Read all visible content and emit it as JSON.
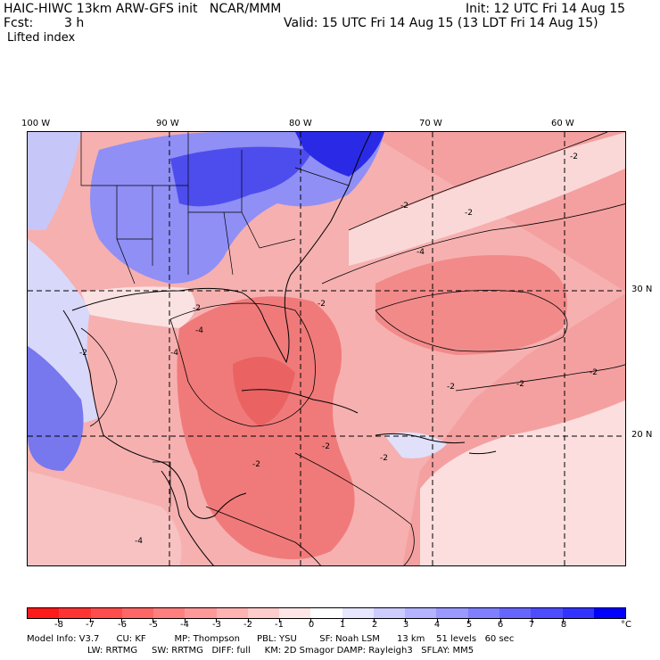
{
  "header": {
    "model_line": "HAIC-HIWC 13km ARW-GFS init   NCAR/MMM",
    "init_line": "Init: 12 UTC Fri 14 Aug 15",
    "fcst_label": "Fcst:",
    "fcst_value": "3 h",
    "valid_line": "Valid: 15 UTC Fri 14 Aug 15 (13 LDT Fri 14 Aug 15)",
    "field_name": "Lifted index"
  },
  "map": {
    "longitude_labels": [
      "100 W",
      "90 W",
      "80 W",
      "70 W",
      "60 W"
    ],
    "latitude_labels": [
      "30 N",
      "20 N"
    ],
    "contour_labels": [
      "-2",
      "-2",
      "-2",
      "-2",
      "-4",
      "-2",
      "-2",
      "-4",
      "-2",
      "-2",
      "-4",
      "-2",
      "-2",
      "-2",
      "-2",
      "-4"
    ]
  },
  "colorbar": {
    "labels": [
      "-8",
      "-7",
      "-6",
      "-5",
      "-4",
      "-3",
      "-2",
      "-1",
      "0",
      "1",
      "2",
      "3",
      "4",
      "5",
      "6",
      "7",
      "8"
    ],
    "unit": "°C",
    "colors": [
      "#ff1a1a",
      "#ff3333",
      "#ff4d4d",
      "#ff6666",
      "#ff7f7f",
      "#ff9999",
      "#ffb3b3",
      "#ffcccc",
      "#ffe6e6",
      "#ffffff",
      "#e6e6ff",
      "#ccccff",
      "#b3b3ff",
      "#9999ff",
      "#7f7fff",
      "#6666ff",
      "#4d4dff",
      "#3333ff",
      "#0000ff"
    ]
  },
  "model_info": {
    "line1": "Model Info: V3.7      CU: KF          MP: Thompson      PBL: YSU        SF: Noah LSM      13 km    51 levels   60 sec",
    "line2": "LW: RRTMG     SW: RRTMG   DIFF: full     KM: 2D Smagor DAMP: Rayleigh3   SFLAY: MM5"
  }
}
